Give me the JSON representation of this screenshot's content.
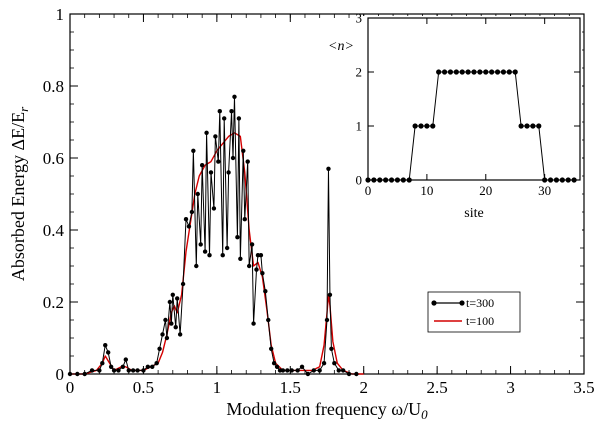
{
  "chart_data": [
    {
      "type": "line",
      "panel": "main",
      "xlabel": "Modulation frequency ω/U",
      "xlabel_sub": "0",
      "ylabel": "Absorbed Energy  ΔE/E",
      "ylabel_sub": "r",
      "xlim": [
        0,
        3.5
      ],
      "ylim": [
        0,
        1
      ],
      "xticks": [
        0,
        0.5,
        1,
        1.5,
        2,
        2.5,
        3,
        3.5
      ],
      "xtick_labels": [
        "0",
        "0.5",
        "1",
        "1.5",
        "2",
        "2.5",
        "3",
        "3.5"
      ],
      "yticks": [
        0,
        0.2,
        0.4,
        0.6,
        0.8,
        1
      ],
      "ytick_labels": [
        "0",
        "0.2",
        "0.4",
        "0.6",
        "0.8",
        "1"
      ],
      "grid": false,
      "legend_position": "bottom-right",
      "series": [
        {
          "name": "t=300",
          "color": "#000000",
          "marker": "circle",
          "x": [
            0.0,
            0.05,
            0.1,
            0.15,
            0.2,
            0.22,
            0.24,
            0.26,
            0.28,
            0.3,
            0.33,
            0.36,
            0.38,
            0.4,
            0.43,
            0.46,
            0.5,
            0.53,
            0.56,
            0.59,
            0.61,
            0.63,
            0.65,
            0.66,
            0.68,
            0.69,
            0.7,
            0.72,
            0.73,
            0.75,
            0.77,
            0.79,
            0.81,
            0.83,
            0.84,
            0.86,
            0.87,
            0.89,
            0.9,
            0.92,
            0.93,
            0.95,
            0.96,
            0.98,
            0.99,
            1.01,
            1.02,
            1.04,
            1.05,
            1.07,
            1.08,
            1.1,
            1.11,
            1.12,
            1.14,
            1.15,
            1.16,
            1.18,
            1.19,
            1.21,
            1.22,
            1.24,
            1.25,
            1.27,
            1.28,
            1.3,
            1.31,
            1.33,
            1.35,
            1.37,
            1.39,
            1.41,
            1.43,
            1.45,
            1.48,
            1.51,
            1.55,
            1.58,
            1.62,
            1.66,
            1.7,
            1.73,
            1.75,
            1.76,
            1.77,
            1.78,
            1.8,
            1.83,
            1.86,
            1.9,
            1.95
          ],
          "y": [
            0.0,
            0.0,
            0.0,
            0.01,
            0.01,
            0.03,
            0.08,
            0.06,
            0.02,
            0.01,
            0.01,
            0.02,
            0.04,
            0.01,
            0.01,
            0.01,
            0.01,
            0.02,
            0.02,
            0.03,
            0.07,
            0.11,
            0.15,
            0.1,
            0.2,
            0.14,
            0.22,
            0.13,
            0.21,
            0.11,
            0.25,
            0.43,
            0.41,
            0.45,
            0.62,
            0.3,
            0.5,
            0.36,
            0.58,
            0.34,
            0.67,
            0.33,
            0.56,
            0.46,
            0.66,
            0.59,
            0.73,
            0.33,
            0.71,
            0.35,
            0.56,
            0.73,
            0.6,
            0.77,
            0.38,
            0.71,
            0.32,
            0.62,
            0.43,
            0.59,
            0.3,
            0.36,
            0.14,
            0.29,
            0.33,
            0.33,
            0.28,
            0.23,
            0.15,
            0.07,
            0.03,
            0.02,
            0.01,
            0.01,
            0.01,
            0.01,
            0.01,
            0.02,
            0.0,
            0.01,
            0.01,
            0.03,
            0.15,
            0.57,
            0.22,
            0.07,
            0.03,
            0.01,
            0.01,
            0.0,
            0.0
          ]
        },
        {
          "name": "t=100",
          "color": "#d40000",
          "marker": "none",
          "x": [
            0.0,
            0.1,
            0.18,
            0.22,
            0.24,
            0.27,
            0.3,
            0.35,
            0.38,
            0.42,
            0.5,
            0.55,
            0.6,
            0.63,
            0.66,
            0.69,
            0.71,
            0.73,
            0.76,
            0.79,
            0.82,
            0.85,
            0.88,
            0.92,
            0.96,
            1.0,
            1.04,
            1.08,
            1.12,
            1.16,
            1.19,
            1.22,
            1.25,
            1.28,
            1.31,
            1.34,
            1.37,
            1.4,
            1.45,
            1.5,
            1.55,
            1.6,
            1.65,
            1.7,
            1.73,
            1.75,
            1.76,
            1.77,
            1.79,
            1.82,
            1.86,
            1.92,
            2.0
          ],
          "y": [
            0.0,
            0.0,
            0.01,
            0.03,
            0.05,
            0.03,
            0.01,
            0.02,
            0.02,
            0.01,
            0.01,
            0.02,
            0.03,
            0.06,
            0.11,
            0.17,
            0.19,
            0.17,
            0.22,
            0.34,
            0.42,
            0.5,
            0.55,
            0.58,
            0.59,
            0.62,
            0.64,
            0.66,
            0.67,
            0.66,
            0.56,
            0.4,
            0.3,
            0.31,
            0.27,
            0.18,
            0.08,
            0.03,
            0.01,
            0.01,
            0.01,
            0.01,
            0.01,
            0.02,
            0.08,
            0.17,
            0.22,
            0.19,
            0.09,
            0.03,
            0.01,
            0.0,
            0.0
          ]
        }
      ]
    },
    {
      "type": "line",
      "panel": "inset",
      "xlabel": "site",
      "ylabel": "<n>",
      "xlim": [
        0,
        36
      ],
      "ylim": [
        0,
        3
      ],
      "xticks": [
        0,
        10,
        20,
        30
      ],
      "xtick_labels": [
        "0",
        "10",
        "20",
        "30"
      ],
      "yticks": [
        0,
        1,
        2,
        3
      ],
      "ytick_labels": [
        "0",
        "1",
        "2",
        "3"
      ],
      "grid": false,
      "series": [
        {
          "color": "#000000",
          "marker": "circle",
          "x": [
            0,
            1,
            2,
            3,
            4,
            5,
            6,
            7,
            8,
            9,
            10,
            11,
            12,
            13,
            14,
            15,
            16,
            17,
            18,
            19,
            20,
            21,
            22,
            23,
            24,
            25,
            26,
            27,
            28,
            29,
            30,
            31,
            32,
            33,
            34,
            35
          ],
          "y": [
            0,
            0,
            0,
            0,
            0,
            0,
            0,
            0,
            1,
            1,
            1,
            1,
            2,
            2,
            2,
            2,
            2,
            2,
            2,
            2,
            2,
            2,
            2,
            2,
            2,
            2,
            1,
            1,
            1,
            1,
            0,
            0,
            0,
            0,
            0,
            0
          ]
        }
      ]
    }
  ]
}
